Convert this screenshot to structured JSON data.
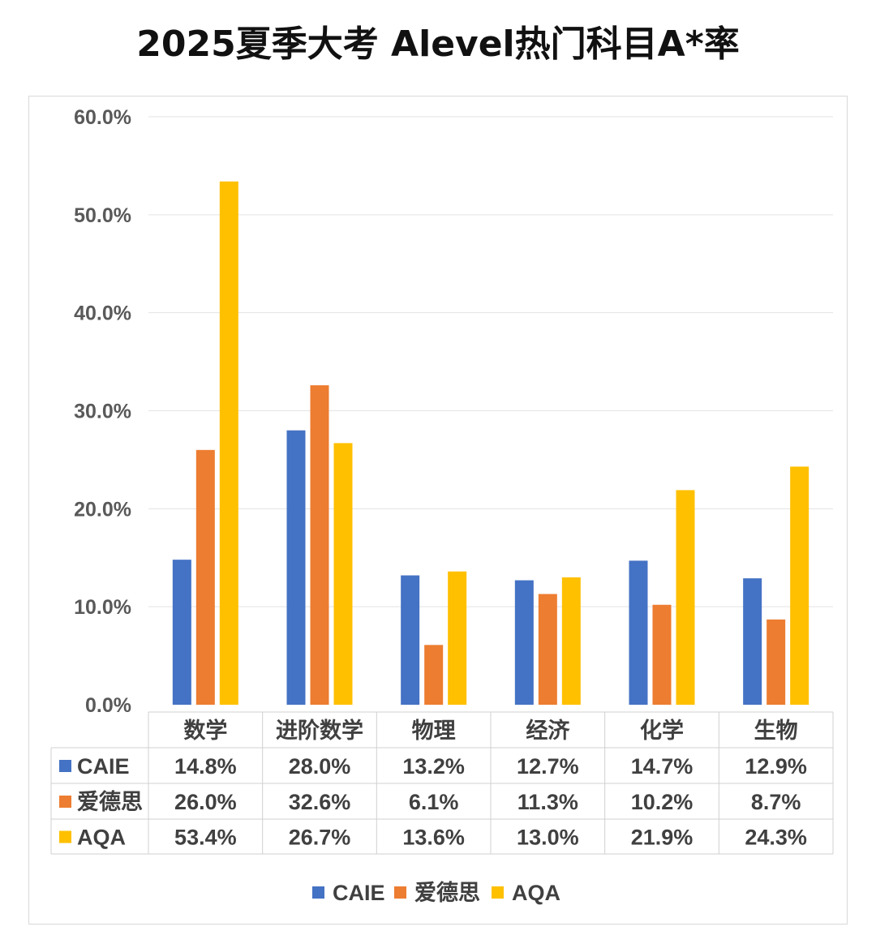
{
  "chart_data": {
    "type": "bar",
    "title": "2025夏季大考  Alevel热门科目A*率",
    "categories": [
      "数学",
      "进阶数学",
      "物理",
      "经济",
      "化学",
      "生物"
    ],
    "series": [
      {
        "name": "CAIE",
        "color": "#4472C4",
        "values": [
          14.8,
          28.0,
          13.2,
          12.7,
          14.7,
          12.9
        ],
        "labels": [
          "14.8%",
          "28.0%",
          "13.2%",
          "12.7%",
          "14.7%",
          "12.9%"
        ]
      },
      {
        "name": "爱德思",
        "color": "#ED7D31",
        "values": [
          26.0,
          32.6,
          6.1,
          11.3,
          10.2,
          8.7
        ],
        "labels": [
          "26.0%",
          "32.6%",
          "6.1%",
          "11.3%",
          "10.2%",
          "8.7%"
        ]
      },
      {
        "name": "AQA",
        "color": "#FFC000",
        "values": [
          53.4,
          26.7,
          13.6,
          13.0,
          21.9,
          24.3
        ],
        "labels": [
          "53.4%",
          "26.7%",
          "13.6%",
          "13.0%",
          "21.9%",
          "24.3%"
        ]
      }
    ],
    "yticks": [
      "0.0%",
      "10.0%",
      "20.0%",
      "30.0%",
      "40.0%",
      "50.0%",
      "60.0%"
    ],
    "ylim": [
      0,
      60
    ],
    "grid": true,
    "data_table": true,
    "legend": "bottom"
  }
}
